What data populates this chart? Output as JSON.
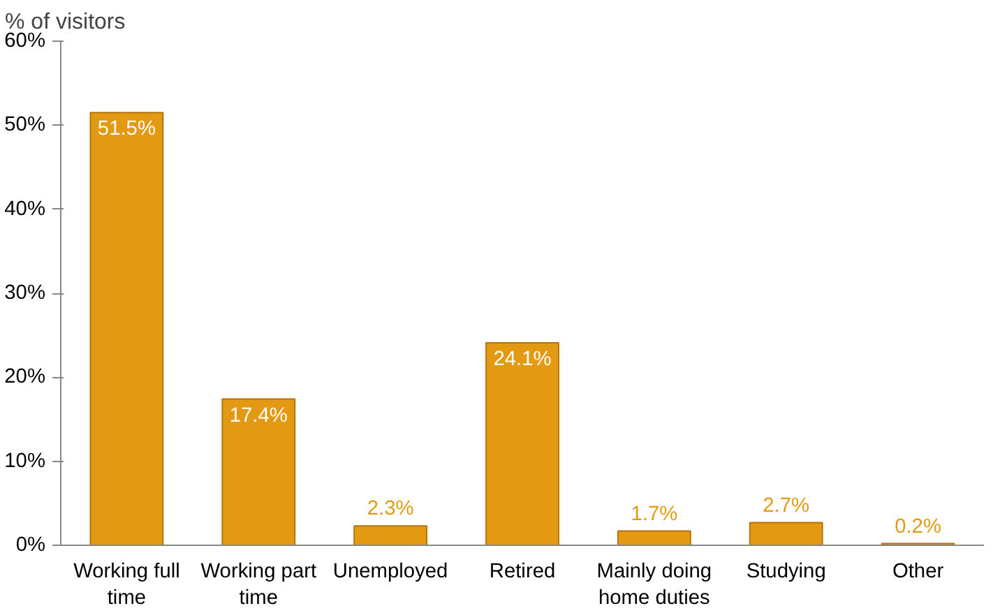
{
  "chart_data": {
    "type": "bar",
    "ylabel": "% of visitors",
    "categories": [
      "Working full time",
      "Working part time",
      "Unemployed",
      "Retired",
      "Mainly doing home duties",
      "Studying",
      "Other"
    ],
    "values": [
      51.5,
      17.4,
      2.3,
      24.1,
      1.7,
      2.7,
      0.2
    ],
    "value_labels": [
      "51.5%",
      "17.4%",
      "2.3%",
      "24.1%",
      "1.7%",
      "2.7%",
      "0.2%"
    ],
    "color": "#e39a12",
    "ylim": [
      0,
      60
    ],
    "yticks": [
      {
        "value": 0,
        "label": "0%"
      },
      {
        "value": 10,
        "label": "10%"
      },
      {
        "value": 20,
        "label": "20%"
      },
      {
        "value": 30,
        "label": "30%"
      },
      {
        "value": 40,
        "label": "40%"
      },
      {
        "value": 50,
        "label": "50%"
      },
      {
        "value": 60,
        "label": "60%"
      }
    ],
    "grid": false
  }
}
